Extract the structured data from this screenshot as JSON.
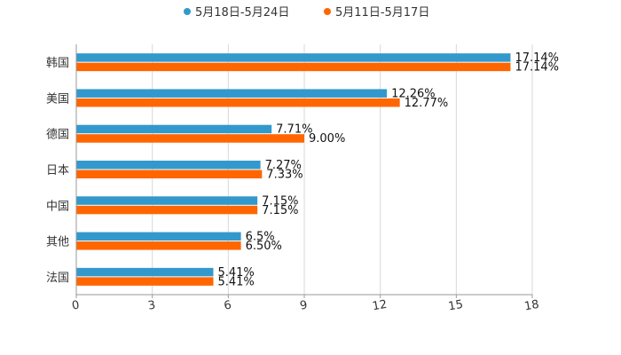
{
  "chart_data": {
    "type": "bar",
    "orientation": "horizontal",
    "categories": [
      "韩国",
      "美国",
      "德国",
      "日本",
      "中国",
      "其他",
      "法国"
    ],
    "series": [
      {
        "name": "5月18日-5月24日",
        "color": "#3399cc",
        "values": [
          17.14,
          12.26,
          7.71,
          7.27,
          7.15,
          6.5,
          5.41
        ],
        "labels": [
          "17.14%",
          "12.26%",
          "7.71%",
          "7.27%",
          "7.15%",
          "6.5%",
          "5.41%"
        ]
      },
      {
        "name": "5月11日-5月17日",
        "color": "#ff6600",
        "values": [
          17.14,
          12.77,
          9.0,
          7.33,
          7.15,
          6.5,
          5.41
        ],
        "labels": [
          "17.14%",
          "12.77%",
          "9.00%",
          "7.33%",
          "7.15%",
          "6.50%",
          "5.41%"
        ]
      }
    ],
    "xlim": [
      0,
      18
    ],
    "xticks": [
      0,
      3,
      6,
      9,
      12,
      15,
      18
    ],
    "xtick_labels": [
      "0",
      "3",
      "6",
      "9",
      "12",
      "15",
      "18"
    ],
    "legend_position": "top-center",
    "grid": true
  }
}
